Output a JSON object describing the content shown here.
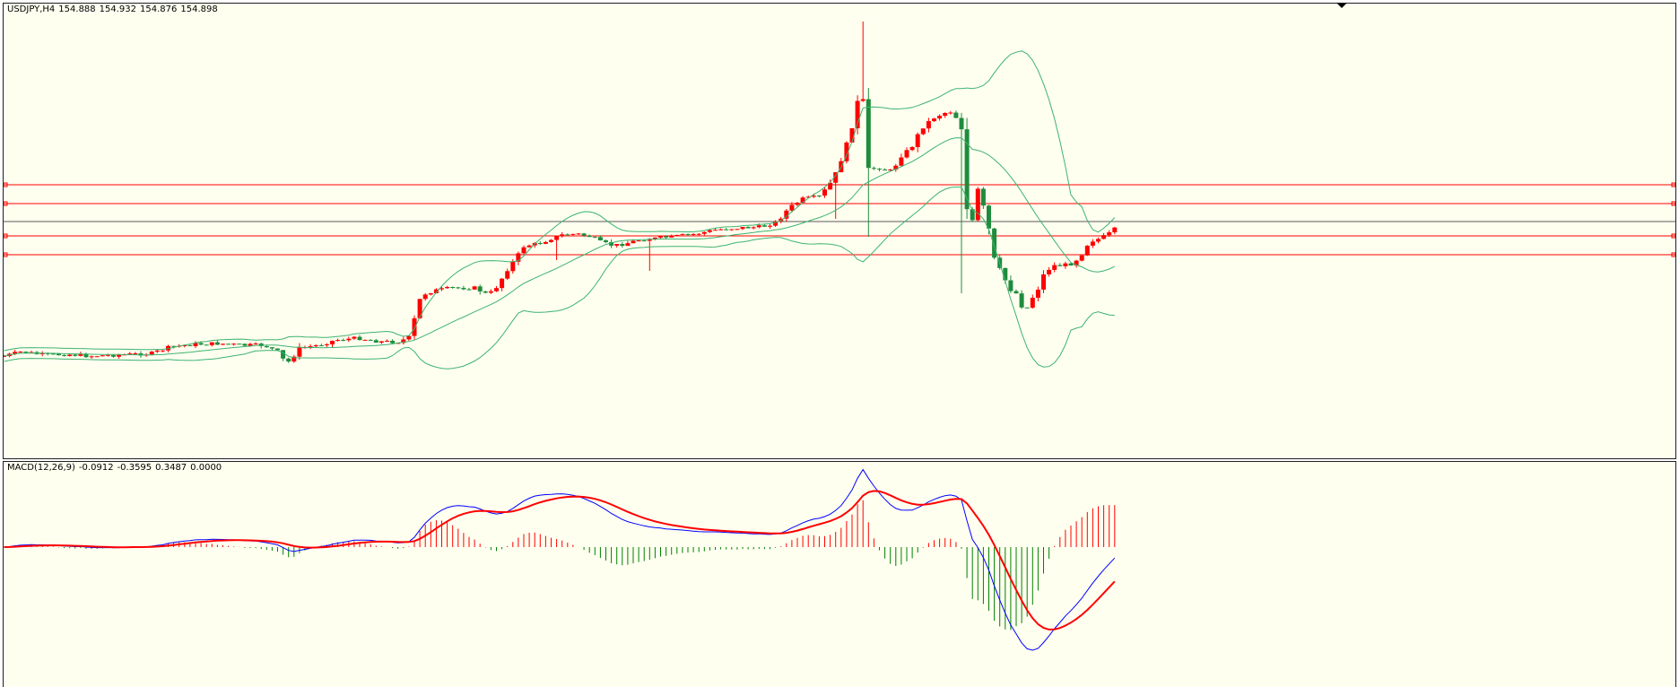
{
  "colors": {
    "background": "#fffff0",
    "bull_candle": "#ff0000",
    "bear_candle": "#1e8c3c",
    "bollinger": "#3cb371",
    "level_line": "#ff0000",
    "bid_line": "#5a5a5a",
    "macd_line": "#0000ff",
    "signal_line": "#ff0000",
    "hist_positive": "#ff0000",
    "hist_negative": "#008000"
  },
  "price_pane": {
    "symbol": "USDJPY,H4",
    "ohlc": [
      "154.888",
      "154.932",
      "154.876",
      "154.898"
    ]
  },
  "macd_pane": {
    "name": "MACD(12,26,9)",
    "values": [
      "-0.0912",
      "-0.3595",
      "0.3487",
      "0.0000"
    ]
  },
  "chart_data": [
    {
      "type": "candlestick",
      "symbol": "USDJPY",
      "timeframe": "H4",
      "ohlc_readout": {
        "open": 154.888,
        "high": 154.932,
        "low": 154.876,
        "close": 154.898
      },
      "shape_keypoints": [
        [
          0,
          393
        ],
        [
          20,
          388
        ],
        [
          45,
          392
        ],
        [
          70,
          391
        ],
        [
          95,
          393
        ],
        [
          120,
          392
        ],
        [
          145,
          391
        ],
        [
          165,
          390
        ],
        [
          185,
          383
        ],
        [
          210,
          380
        ],
        [
          240,
          379
        ],
        [
          265,
          381
        ],
        [
          290,
          381
        ],
        [
          305,
          388
        ],
        [
          315,
          402
        ],
        [
          330,
          384
        ],
        [
          350,
          381
        ],
        [
          370,
          375
        ],
        [
          395,
          373
        ],
        [
          420,
          377
        ],
        [
          440,
          377
        ],
        [
          452,
          372
        ],
        [
          458,
          350
        ],
        [
          465,
          325
        ],
        [
          480,
          320
        ],
        [
          500,
          317
        ],
        [
          525,
          317
        ],
        [
          540,
          325
        ],
        [
          550,
          315
        ],
        [
          560,
          298
        ],
        [
          570,
          285
        ],
        [
          580,
          270
        ],
        [
          595,
          268
        ],
        [
          610,
          262
        ],
        [
          625,
          257
        ],
        [
          640,
          257
        ],
        [
          655,
          260
        ],
        [
          665,
          266
        ],
        [
          680,
          270
        ],
        [
          695,
          267
        ],
        [
          710,
          263
        ],
        [
          725,
          262
        ],
        [
          745,
          260
        ],
        [
          770,
          257
        ],
        [
          795,
          252
        ],
        [
          820,
          250
        ],
        [
          845,
          249
        ],
        [
          862,
          243
        ],
        [
          875,
          228
        ],
        [
          890,
          218
        ],
        [
          910,
          215
        ],
        [
          925,
          195
        ],
        [
          935,
          170
        ],
        [
          945,
          140
        ],
        [
          950,
          110
        ],
        [
          958,
          108
        ],
        [
          963,
          185
        ],
        [
          975,
          183
        ],
        [
          990,
          187
        ],
        [
          1000,
          170
        ],
        [
          1012,
          160
        ],
        [
          1022,
          140
        ],
        [
          1035,
          128
        ],
        [
          1048,
          122
        ],
        [
          1058,
          120
        ],
        [
          1068,
          140
        ],
        [
          1072,
          220
        ],
        [
          1078,
          255
        ],
        [
          1085,
          205
        ],
        [
          1093,
          230
        ],
        [
          1100,
          260
        ],
        [
          1105,
          290
        ],
        [
          1113,
          300
        ],
        [
          1120,
          318
        ],
        [
          1128,
          322
        ],
        [
          1138,
          345
        ],
        [
          1145,
          330
        ],
        [
          1152,
          320
        ],
        [
          1160,
          300
        ],
        [
          1170,
          292
        ],
        [
          1180,
          292
        ],
        [
          1190,
          290
        ],
        [
          1200,
          282
        ],
        [
          1210,
          265
        ],
        [
          1222,
          262
        ],
        [
          1235,
          255
        ],
        [
          1240,
          250
        ]
      ],
      "horizontal_levels": 4,
      "indicators": [
        "Bollinger Bands"
      ]
    },
    {
      "type": "line",
      "name": "MACD(12,26,9)",
      "series": [
        {
          "name": "MACD",
          "values": [
            -0.0912
          ]
        },
        {
          "name": "Signal",
          "values": [
            -0.3595
          ]
        }
      ]
    }
  ]
}
